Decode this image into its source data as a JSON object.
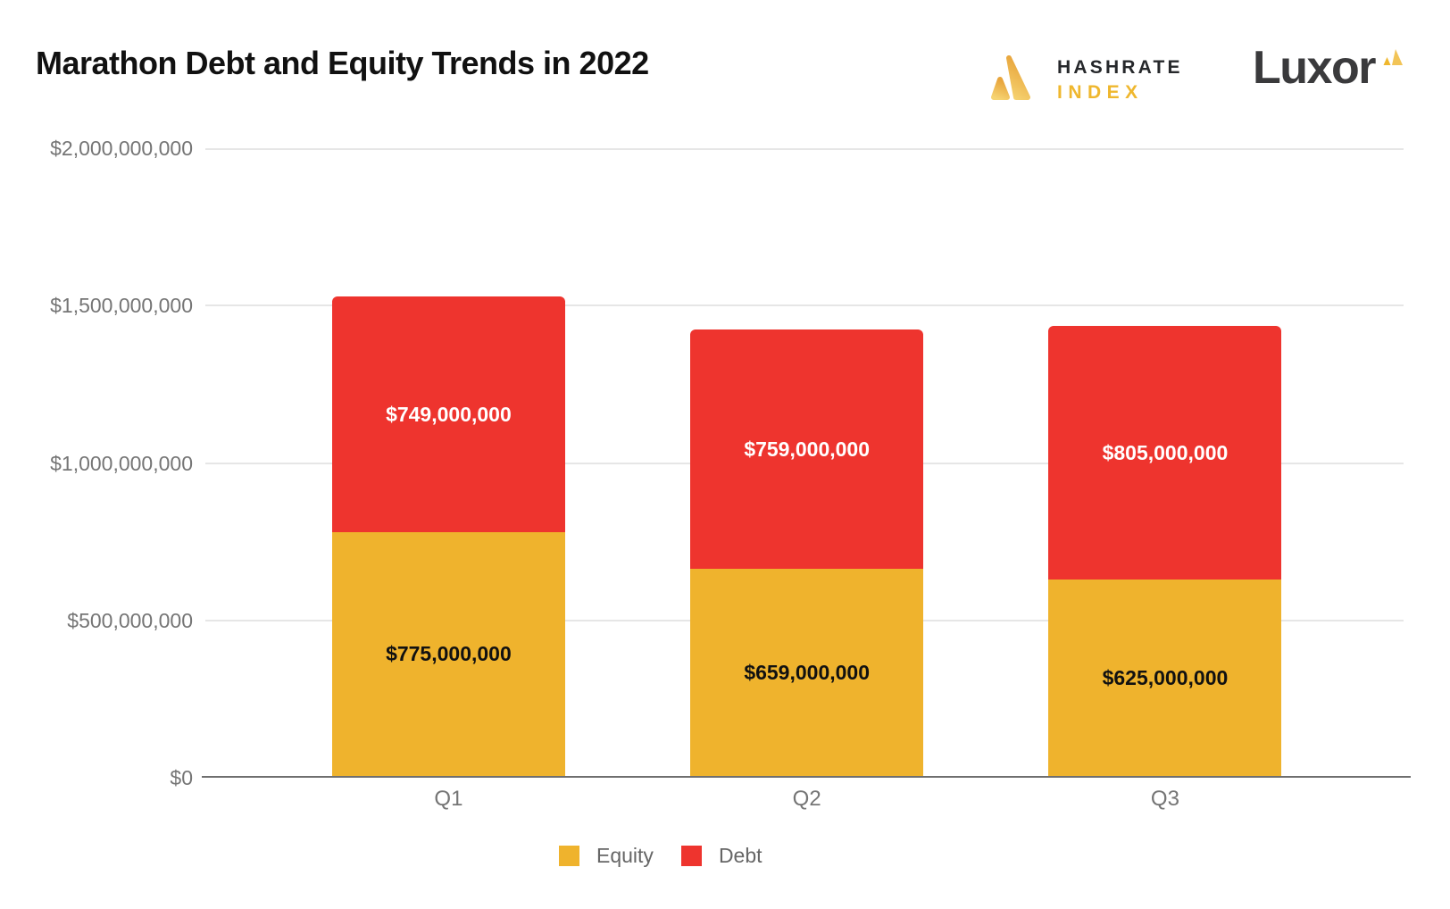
{
  "header": {
    "title": "Marathon Debt and Equity Trends in 2022",
    "hashrate_index_logo": {
      "line1": "HASHRATE",
      "line2": "INDEX"
    },
    "luxor_logo": {
      "wordmark": "Luxor"
    }
  },
  "chart_data": {
    "type": "bar",
    "stacked": true,
    "title": "Marathon Debt and Equity Trends in 2022",
    "categories": [
      "Q1",
      "Q2",
      "Q3"
    ],
    "series": [
      {
        "name": "Equity",
        "color": "#EFB32D",
        "label_color": "#111111",
        "values": [
          775000000,
          659000000,
          625000000
        ],
        "data_labels": [
          "$775,000,000",
          "$659,000,000",
          "$625,000,000"
        ]
      },
      {
        "name": "Debt",
        "color": "#EE342E",
        "label_color": "#FFFFFF",
        "values": [
          749000000,
          759000000,
          805000000
        ],
        "data_labels": [
          "$749,000,000",
          "$759,000,000",
          "$805,000,000"
        ]
      }
    ],
    "y_axis": {
      "min": 0,
      "max": 2000000000,
      "grid": true,
      "ticks": [
        {
          "value": 0,
          "label": "$0"
        },
        {
          "value": 500000000,
          "label": "$500,000,000"
        },
        {
          "value": 1000000000,
          "label": "$1,000,000,000"
        },
        {
          "value": 1500000000,
          "label": "$1,500,000,000"
        },
        {
          "value": 2000000000,
          "label": "$2,000,000,000"
        }
      ]
    },
    "legend": {
      "position": "bottom",
      "entries": [
        "Equity",
        "Debt"
      ]
    }
  }
}
